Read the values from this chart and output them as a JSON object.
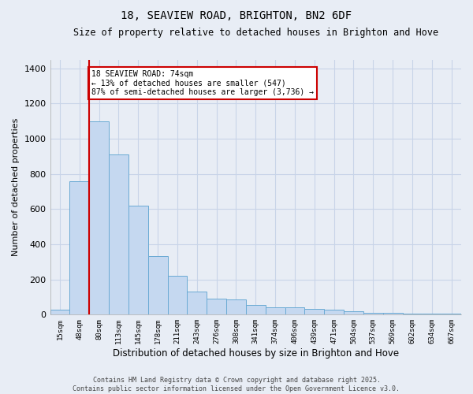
{
  "title": "18, SEAVIEW ROAD, BRIGHTON, BN2 6DF",
  "subtitle": "Size of property relative to detached houses in Brighton and Hove",
  "xlabel": "Distribution of detached houses by size in Brighton and Hove",
  "ylabel": "Number of detached properties",
  "categories": [
    "15sqm",
    "48sqm",
    "80sqm",
    "113sqm",
    "145sqm",
    "178sqm",
    "211sqm",
    "243sqm",
    "276sqm",
    "308sqm",
    "341sqm",
    "374sqm",
    "406sqm",
    "439sqm",
    "471sqm",
    "504sqm",
    "537sqm",
    "569sqm",
    "602sqm",
    "634sqm",
    "667sqm"
  ],
  "values": [
    30,
    760,
    1100,
    910,
    620,
    335,
    220,
    130,
    90,
    85,
    55,
    40,
    40,
    35,
    30,
    20,
    10,
    10,
    5,
    5,
    5
  ],
  "bar_color": "#c5d8f0",
  "bar_edge_color": "#6aaad4",
  "grid_color": "#c8d4e8",
  "background_color": "#e8edf5",
  "red_line_index": 2,
  "annotation_text": "18 SEAVIEW ROAD: 74sqm\n← 13% of detached houses are smaller (547)\n87% of semi-detached houses are larger (3,736) →",
  "annotation_box_facecolor": "#ffffff",
  "annotation_border_color": "#cc0000",
  "footer_text": "Contains HM Land Registry data © Crown copyright and database right 2025.\nContains public sector information licensed under the Open Government Licence v3.0.",
  "ylim": [
    0,
    1450
  ],
  "yticks": [
    0,
    200,
    400,
    600,
    800,
    1000,
    1200,
    1400
  ]
}
